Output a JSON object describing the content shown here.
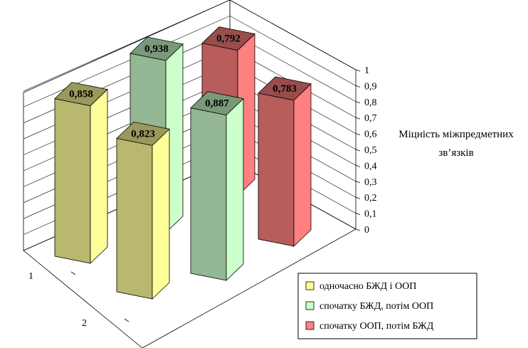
{
  "chart_data": {
    "type": "bar",
    "subtype": "3d-column",
    "zlabel": "Міцність міжпредметних зв’язків",
    "zlabel_lines": [
      "Міцність міжпредметних",
      "зв’язків"
    ],
    "zlim": [
      0,
      1
    ],
    "zticks": [
      "0",
      "0,1",
      "0,2",
      "0,3",
      "0,4",
      "0,5",
      "0,6",
      "0,7",
      "0,8",
      "0,9",
      "1"
    ],
    "depth_categories": [
      "1",
      "2"
    ],
    "grid": true,
    "legend_position": "bottom-right",
    "series": [
      {
        "name": "одночасно БЖД і ООП",
        "color": "#ffff99",
        "values": [
          0.858,
          0.823
        ],
        "labels": [
          "0,858",
          "0,823"
        ]
      },
      {
        "name": "спочатку БЖД, потім ООП",
        "color": "#ccffcc",
        "values": [
          0.938,
          0.887
        ],
        "labels": [
          "0,938",
          "0,887"
        ]
      },
      {
        "name": "спочатку ООП, потім БЖД",
        "color": "#ff8080",
        "values": [
          0.792,
          0.783
        ],
        "labels": [
          "0,792",
          "0,783"
        ]
      }
    ]
  }
}
